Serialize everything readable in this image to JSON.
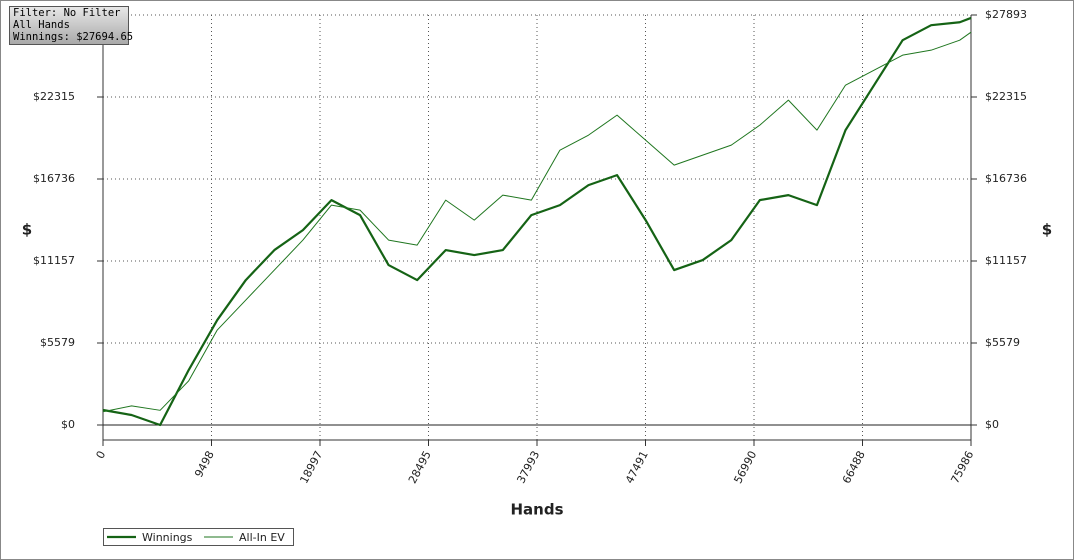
{
  "header": {
    "filter": "Filter: No Filter",
    "hands": "All Hands",
    "winnings": "Winnings: $27694.65"
  },
  "chart_data": {
    "type": "line",
    "x_label": "Hands",
    "y_label": "$",
    "x": [
      0,
      2500,
      5000,
      7500,
      10000,
      12500,
      15000,
      17500,
      20000,
      22500,
      25000,
      27500,
      30000,
      32500,
      35000,
      37500,
      40000,
      42500,
      45000,
      47500,
      50000,
      52500,
      55000,
      57500,
      60000,
      62500,
      65000,
      67500,
      70000,
      72500,
      75000,
      75986
    ],
    "series": [
      {
        "name": "Winnings",
        "color": "#156315",
        "values": [
          1020,
          680,
          0,
          3740,
          7140,
          9860,
          11900,
          13260,
          15300,
          14280,
          10880,
          9860,
          11900,
          11560,
          11900,
          14280,
          14960,
          16320,
          17000,
          13940,
          10540,
          11220,
          12580,
          15300,
          15640,
          14960,
          20060,
          23120,
          26180,
          27200,
          27400,
          27694
        ]
      },
      {
        "name": "All-In EV",
        "color": "#1f761f",
        "values": [
          900,
          1300,
          1000,
          3000,
          6460,
          8500,
          10540,
          12580,
          14960,
          14620,
          12580,
          12240,
          15300,
          13940,
          15640,
          15300,
          18700,
          19720,
          21080,
          19380,
          17680,
          18360,
          19040,
          20400,
          22100,
          20060,
          23120,
          24140,
          25160,
          25500,
          26180,
          26724
        ]
      }
    ],
    "xlim": [
      0,
      75986
    ],
    "xticks": [
      0,
      9498,
      18997,
      28495,
      37993,
      47491,
      56990,
      66488,
      75986
    ],
    "ylim": [
      -1020,
      27893
    ],
    "yticks": [
      {
        "value": 0,
        "label": "$0"
      },
      {
        "value": 5579,
        "label": "$5579"
      },
      {
        "value": 11157,
        "label": "$11157"
      },
      {
        "value": 16736,
        "label": "$16736"
      },
      {
        "value": 22315,
        "label": "$22315"
      },
      {
        "value": 27893,
        "label": "$27893"
      }
    ],
    "grid": true
  }
}
